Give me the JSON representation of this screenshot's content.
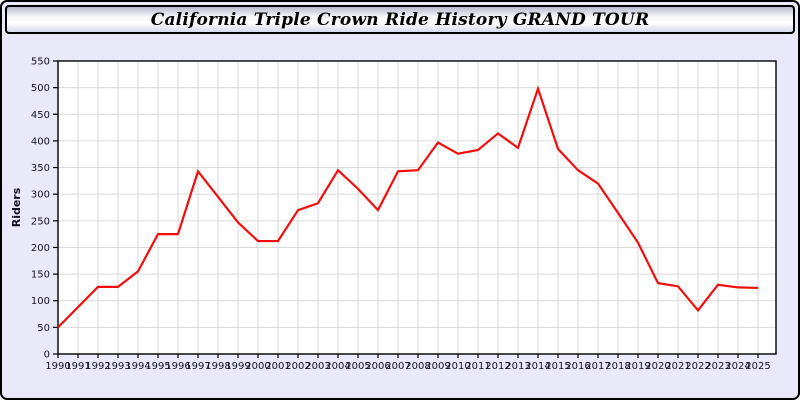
{
  "page": {
    "title": "California Triple Crown Ride History GRAND TOUR",
    "background_color": "#e9e9f9",
    "header_gradient_top": "#b9b9ce",
    "header_gradient_bottom": "#d8d8ef",
    "border_color": "#000000"
  },
  "chart_data": {
    "type": "line",
    "title": "California Triple Crown Ride History GRAND TOUR",
    "xlabel": "",
    "ylabel": "Riders",
    "ylim": [
      0,
      550
    ],
    "ytick_step": 50,
    "grid": true,
    "legend_position": "none",
    "line_color": "#f20d0d",
    "grid_color": "#d9d9d9",
    "plot_background": "#ffffff",
    "categories": [
      "1990",
      "1991",
      "1992",
      "1993",
      "1994",
      "1995",
      "1996",
      "1997",
      "1998",
      "1999",
      "2000",
      "2001",
      "2002",
      "2003",
      "2004",
      "2005",
      "2006",
      "2007",
      "2008",
      "2009",
      "2010",
      "2011",
      "2012",
      "2013",
      "2014",
      "2015",
      "2016",
      "2017",
      "2018",
      "2019",
      "2020",
      "2021",
      "2022",
      "2023",
      "2024",
      "2025"
    ],
    "values": [
      50,
      88,
      126,
      126,
      155,
      225,
      225,
      343,
      295,
      247,
      212,
      212,
      270,
      283,
      345,
      310,
      270,
      343,
      345,
      397,
      376,
      383,
      414,
      387,
      498,
      385,
      345,
      320,
      265,
      209,
      133,
      127,
      82,
      130,
      125,
      124
    ]
  }
}
